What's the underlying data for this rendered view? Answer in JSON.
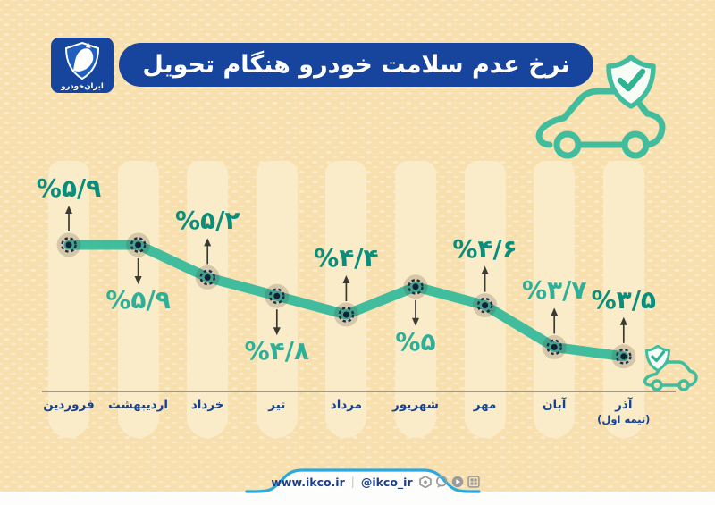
{
  "header": {
    "title": "نرخ عدم سلامت خودرو هنگام تحویل",
    "logo_wordmark": "ایران‌خودرو"
  },
  "footer": {
    "website": "www.ikco.ir",
    "separator": "|",
    "handle": "@ikco_ir",
    "icons": [
      "hexagon",
      "chat-balloon",
      "play-circle",
      "grid"
    ]
  },
  "colors": {
    "background": "#F8DFAE",
    "column": "#FBECC9",
    "line": "#41BD9E",
    "label_dark": "#0A8E7B",
    "label_light": "#2FAF97",
    "navy": "#17459E",
    "month_text": "#17418F",
    "footer_blue": "#2BA9E1",
    "icon_teal": "#41BD9E"
  },
  "chart_data": {
    "type": "line",
    "title": "نرخ عدم سلامت خودرو هنگام تحویل",
    "unit": "%",
    "categories": [
      "فروردین",
      "اردیبهشت",
      "خرداد",
      "تیر",
      "مرداد",
      "شهریور",
      "مهر",
      "آبان",
      "آذر"
    ],
    "category_notes": [
      "",
      "",
      "",
      "",
      "",
      "",
      "",
      "",
      "(نیمه اول)"
    ],
    "values": [
      5.9,
      5.9,
      5.2,
      4.8,
      4.4,
      5,
      4.6,
      3.7,
      3.5
    ],
    "value_labels": [
      "%۵/۹",
      "%۵/۹",
      "%۵/۲",
      "%۴/۸",
      "%۴/۴",
      "%۵",
      "%۴/۶",
      "%۳/۷",
      "%۳/۵"
    ],
    "label_placements": [
      "above",
      "below",
      "above",
      "below",
      "above",
      "below",
      "above",
      "above",
      "above"
    ],
    "label_tones": [
      "dark",
      "light",
      "dark",
      "light",
      "dark",
      "light",
      "dark",
      "light",
      "dark"
    ],
    "ylim": [
      3.2,
      6.2
    ],
    "grid": false,
    "legend": false
  }
}
